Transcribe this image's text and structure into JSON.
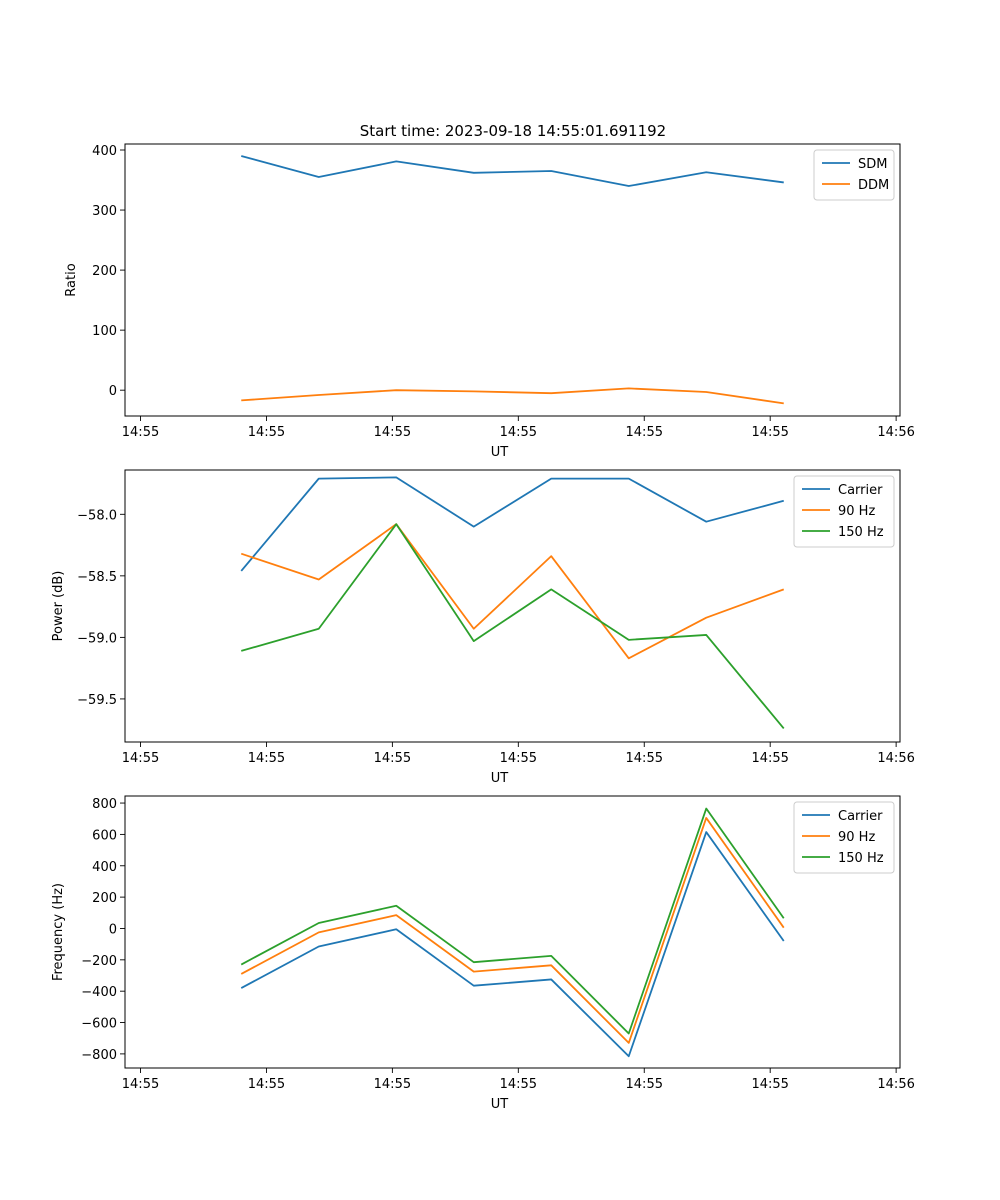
{
  "figure": {
    "title": "Start time: 2023-09-18 14:55:01.691192"
  },
  "chart_data": [
    {
      "type": "line",
      "title": "Start time: 2023-09-18 14:55:01.691192",
      "xlabel": "UT",
      "ylabel": "Ratio",
      "x_ticks": [
        "14:55",
        "14:55",
        "14:55",
        "14:55",
        "14:55",
        "14:55",
        "14:56"
      ],
      "x_range": [
        -0.5,
        9.5
      ],
      "x": [
        1,
        2,
        3,
        4,
        5,
        6,
        7,
        8
      ],
      "ylim": [
        -43,
        410
      ],
      "y_ticks": [
        0,
        100,
        200,
        300,
        400
      ],
      "legend": "top-right",
      "series": [
        {
          "name": "SDM",
          "color": "#1f77b4",
          "values": [
            390,
            355,
            381,
            362,
            365,
            340,
            363,
            346
          ]
        },
        {
          "name": "DDM",
          "color": "#ff7f0e",
          "values": [
            -17,
            -8,
            0,
            -2,
            -5,
            3,
            -3,
            -22
          ]
        }
      ]
    },
    {
      "type": "line",
      "xlabel": "UT",
      "ylabel": "Power (dB)",
      "x_ticks": [
        "14:55",
        "14:55",
        "14:55",
        "14:55",
        "14:55",
        "14:55",
        "14:56"
      ],
      "x_range": [
        -0.5,
        9.5
      ],
      "x": [
        1,
        2,
        3,
        4,
        5,
        6,
        7,
        8
      ],
      "ylim": [
        -59.85,
        -57.64
      ],
      "y_ticks": [
        -58.0,
        -58.5,
        -59.0,
        -59.5
      ],
      "y_tick_labels": [
        "−58.0",
        "−58.5",
        "−59.0",
        "−59.5"
      ],
      "legend": "top-right",
      "series": [
        {
          "name": "Carrier",
          "color": "#1f77b4",
          "values": [
            -58.46,
            -57.71,
            -57.7,
            -58.1,
            -57.71,
            -57.71,
            -58.06,
            -57.89
          ]
        },
        {
          "name": "90 Hz",
          "color": "#ff7f0e",
          "values": [
            -58.32,
            -58.53,
            -58.08,
            -58.93,
            -58.34,
            -59.17,
            -58.84,
            -58.61
          ]
        },
        {
          "name": "150 Hz",
          "color": "#2ca02c",
          "values": [
            -59.11,
            -58.93,
            -58.08,
            -59.03,
            -58.61,
            -59.02,
            -58.98,
            -59.74
          ]
        }
      ]
    },
    {
      "type": "line",
      "xlabel": "UT",
      "ylabel": "Frequency (Hz)",
      "x_ticks": [
        "14:55",
        "14:55",
        "14:55",
        "14:55",
        "14:55",
        "14:55",
        "14:56"
      ],
      "x_range": [
        -0.5,
        9.5
      ],
      "x": [
        1,
        2,
        3,
        4,
        5,
        6,
        7,
        8
      ],
      "ylim": [
        -890,
        845
      ],
      "y_ticks": [
        800,
        600,
        400,
        200,
        0,
        -200,
        -400,
        -600,
        -800
      ],
      "y_tick_labels": [
        "800",
        "600",
        "400",
        "200",
        "0",
        "−200",
        "−400",
        "−600",
        "−800"
      ],
      "legend": "top-right",
      "series": [
        {
          "name": "Carrier",
          "color": "#1f77b4",
          "values": [
            -380,
            -115,
            -5,
            -365,
            -325,
            -815,
            615,
            -80
          ]
        },
        {
          "name": "90 Hz",
          "color": "#ff7f0e",
          "values": [
            -290,
            -25,
            85,
            -275,
            -235,
            -730,
            705,
            5
          ]
        },
        {
          "name": "150 Hz",
          "color": "#2ca02c",
          "values": [
            -230,
            35,
            145,
            -215,
            -175,
            -670,
            765,
            65
          ]
        }
      ]
    }
  ]
}
